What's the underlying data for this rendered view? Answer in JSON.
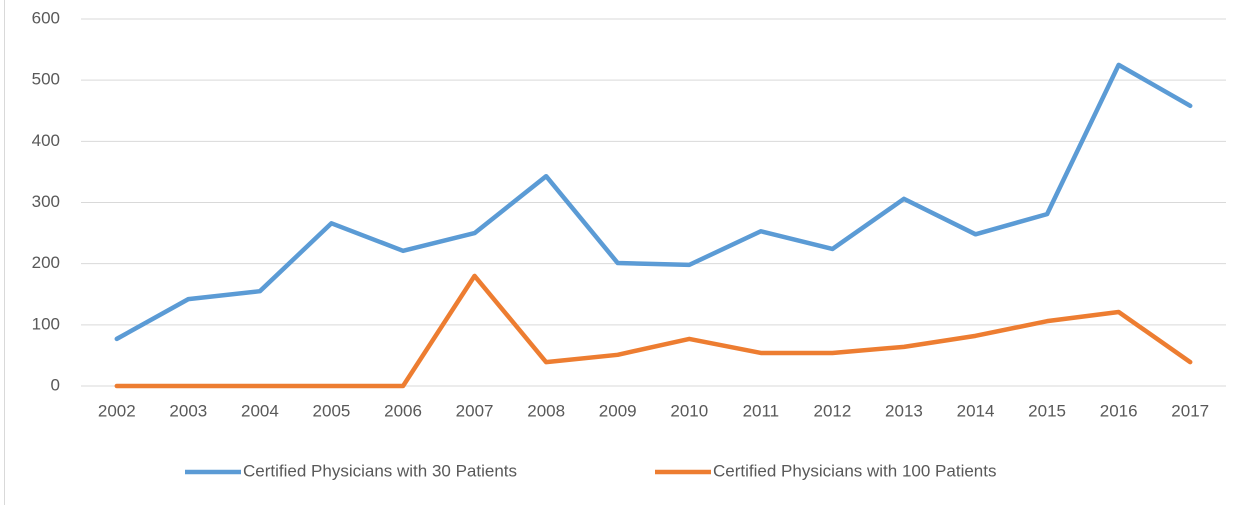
{
  "chart_data": {
    "type": "line",
    "categories": [
      "2002",
      "2003",
      "2004",
      "2005",
      "2006",
      "2007",
      "2008",
      "2009",
      "2010",
      "2011",
      "2012",
      "2013",
      "2014",
      "2015",
      "2016",
      "2017"
    ],
    "series": [
      {
        "name": "Certified Physicians with 30 Patients",
        "color": "#5b9bd5",
        "values": [
          77,
          142,
          155,
          266,
          221,
          250,
          343,
          201,
          198,
          253,
          224,
          306,
          248,
          281,
          525,
          458
        ]
      },
      {
        "name": "Certified Physicians with 100 Patients",
        "color": "#ed7d31",
        "values": [
          0,
          0,
          0,
          0,
          0,
          180,
          39,
          51,
          77,
          54,
          54,
          64,
          82,
          106,
          121,
          39
        ]
      }
    ],
    "ylim": [
      0,
      600
    ],
    "yticks": [
      0,
      100,
      200,
      300,
      400,
      500,
      600
    ],
    "grid": true,
    "legend": "bottom"
  }
}
